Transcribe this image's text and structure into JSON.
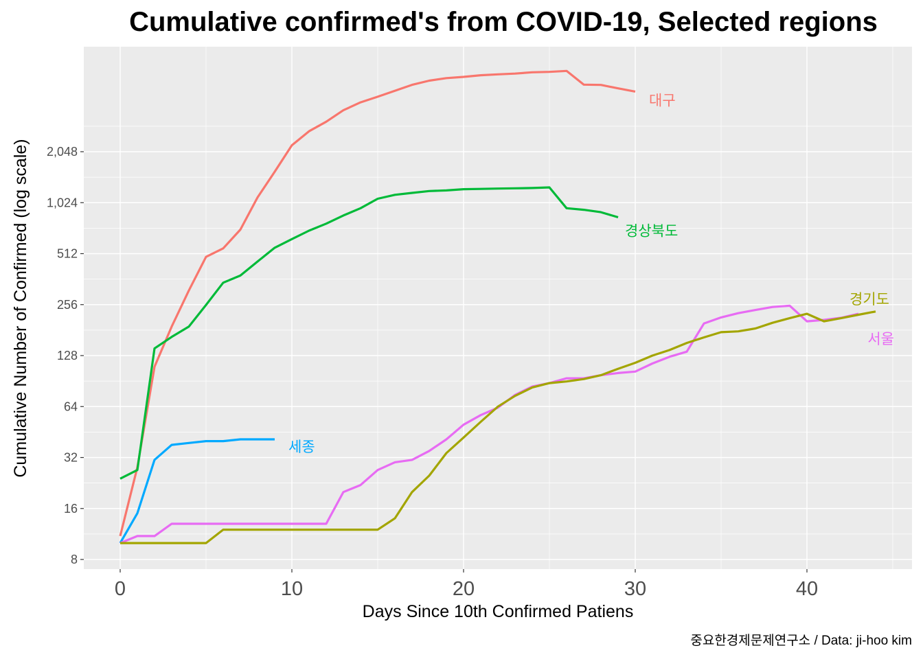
{
  "chart_data": {
    "type": "line",
    "title": "Cumulative confirmed's from COVID-19, Selected regions",
    "xlabel": "Days Since 10th Confirmed Patiens",
    "ylabel": "Cumulative Number of Confirmed (log scale)",
    "caption": "중요한경제문제연구소 / Data: ji-hoo kim",
    "y_scale": "log2",
    "xlim": [
      -2,
      45
    ],
    "ylim": [
      7.5,
      6000
    ],
    "x_ticks": [
      0,
      10,
      20,
      30,
      40
    ],
    "x_tick_labels": [
      "0",
      "10",
      "20",
      "30",
      "40"
    ],
    "y_ticks": [
      8,
      16,
      32,
      64,
      128,
      256,
      512,
      1024,
      2048
    ],
    "y_tick_labels": [
      "8",
      "16",
      "32",
      "64",
      "128",
      "256",
      "512",
      "1,024",
      "2,048"
    ],
    "grid": true,
    "legend": "none (direct labels at line ends)",
    "series": [
      {
        "name": "대구",
        "color": "#F8766D",
        "x": [
          0,
          1,
          2,
          3,
          4,
          5,
          6,
          7,
          8,
          9,
          10,
          11,
          12,
          13,
          14,
          15,
          16,
          17,
          18,
          19,
          20,
          21,
          22,
          23,
          24,
          25,
          26,
          27,
          28,
          29,
          30
        ],
        "values": [
          11,
          28,
          110,
          190,
          310,
          490,
          550,
          710,
          1100,
          1560,
          2236,
          2705,
          3081,
          3600,
          4006,
          4326,
          4694,
          5084,
          5381,
          5571,
          5663,
          5794,
          5867,
          5928,
          6031,
          6066,
          6144,
          5100,
          5080,
          4850,
          4640
        ]
      },
      {
        "name": "경상북도",
        "color": "#00BA38",
        "x": [
          0,
          1,
          2,
          3,
          4,
          5,
          6,
          7,
          8,
          9,
          10,
          11,
          12,
          13,
          14,
          15,
          16,
          17,
          18,
          19,
          20,
          21,
          22,
          23,
          24,
          25,
          26,
          27,
          28,
          29
        ],
        "values": [
          24,
          27,
          141,
          165,
          190,
          255,
          345,
          380,
          460,
          555,
          624,
          700,
          770,
          860,
          950,
          1080,
          1140,
          1170,
          1200,
          1210,
          1230,
          1235,
          1240,
          1245,
          1250,
          1260,
          950,
          930,
          900,
          840
        ]
      },
      {
        "name": "세종",
        "color": "#00A9FF",
        "x": [
          0,
          1,
          2,
          3,
          4,
          5,
          6,
          7,
          8,
          9
        ],
        "values": [
          10,
          15,
          31,
          38,
          39,
          40,
          40,
          41,
          41,
          41
        ]
      },
      {
        "name": "서울",
        "color": "#E76BF3",
        "x": [
          0,
          1,
          2,
          3,
          4,
          5,
          6,
          7,
          8,
          9,
          10,
          11,
          12,
          13,
          14,
          15,
          16,
          17,
          18,
          19,
          20,
          21,
          22,
          23,
          24,
          25,
          26,
          27,
          28,
          29,
          30,
          31,
          32,
          33,
          34,
          35,
          36,
          37,
          38,
          39,
          40,
          41,
          42,
          43
        ],
        "values": [
          10,
          11,
          11,
          13,
          13,
          13,
          13,
          13,
          13,
          13,
          13,
          13,
          13,
          20,
          22,
          27,
          30,
          31,
          35,
          41,
          50,
          57,
          63,
          75,
          84,
          88,
          94,
          94,
          98,
          101,
          103,
          115,
          126,
          135,
          198,
          215,
          228,
          238,
          248,
          252,
          204,
          208,
          214,
          226
        ]
      },
      {
        "name": "경기도",
        "color": "#A3A500",
        "x": [
          0,
          1,
          2,
          3,
          4,
          5,
          6,
          7,
          8,
          9,
          10,
          11,
          12,
          13,
          14,
          15,
          16,
          17,
          18,
          19,
          20,
          21,
          22,
          23,
          24,
          25,
          26,
          27,
          28,
          29,
          30,
          31,
          32,
          33,
          34,
          35,
          36,
          37,
          38,
          39,
          40,
          41,
          42,
          43,
          44
        ],
        "values": [
          10,
          10,
          10,
          10,
          10,
          10,
          12,
          12,
          12,
          12,
          12,
          12,
          12,
          12,
          12,
          12,
          14,
          20,
          25,
          34,
          42,
          52,
          64,
          74,
          83,
          88,
          90,
          93,
          98,
          107,
          116,
          128,
          138,
          152,
          164,
          176,
          178,
          185,
          200,
          213,
          226,
          204,
          213,
          223,
          233
        ]
      }
    ]
  }
}
